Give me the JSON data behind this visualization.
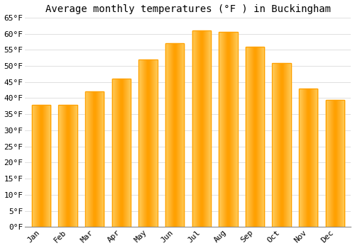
{
  "title": "Average monthly temperatures (°F ) in Buckingham",
  "months": [
    "Jan",
    "Feb",
    "Mar",
    "Apr",
    "May",
    "Jun",
    "Jul",
    "Aug",
    "Sep",
    "Oct",
    "Nov",
    "Dec"
  ],
  "values": [
    38,
    38,
    42,
    46,
    52,
    57,
    61,
    60.5,
    56,
    51,
    43,
    39.5
  ],
  "bar_color_light": "#FFD060",
  "bar_color_dark": "#FFA000",
  "background_color": "#FFFFFF",
  "plot_bg_color": "#FFFFFF",
  "ylim": [
    0,
    65
  ],
  "yticks": [
    0,
    5,
    10,
    15,
    20,
    25,
    30,
    35,
    40,
    45,
    50,
    55,
    60,
    65
  ],
  "ytick_labels": [
    "0°F",
    "5°F",
    "10°F",
    "15°F",
    "20°F",
    "25°F",
    "30°F",
    "35°F",
    "40°F",
    "45°F",
    "50°F",
    "55°F",
    "60°F",
    "65°F"
  ],
  "title_fontsize": 10,
  "tick_fontsize": 8,
  "grid_color": "#E0E0E0",
  "font_family": "monospace",
  "bar_width": 0.7
}
